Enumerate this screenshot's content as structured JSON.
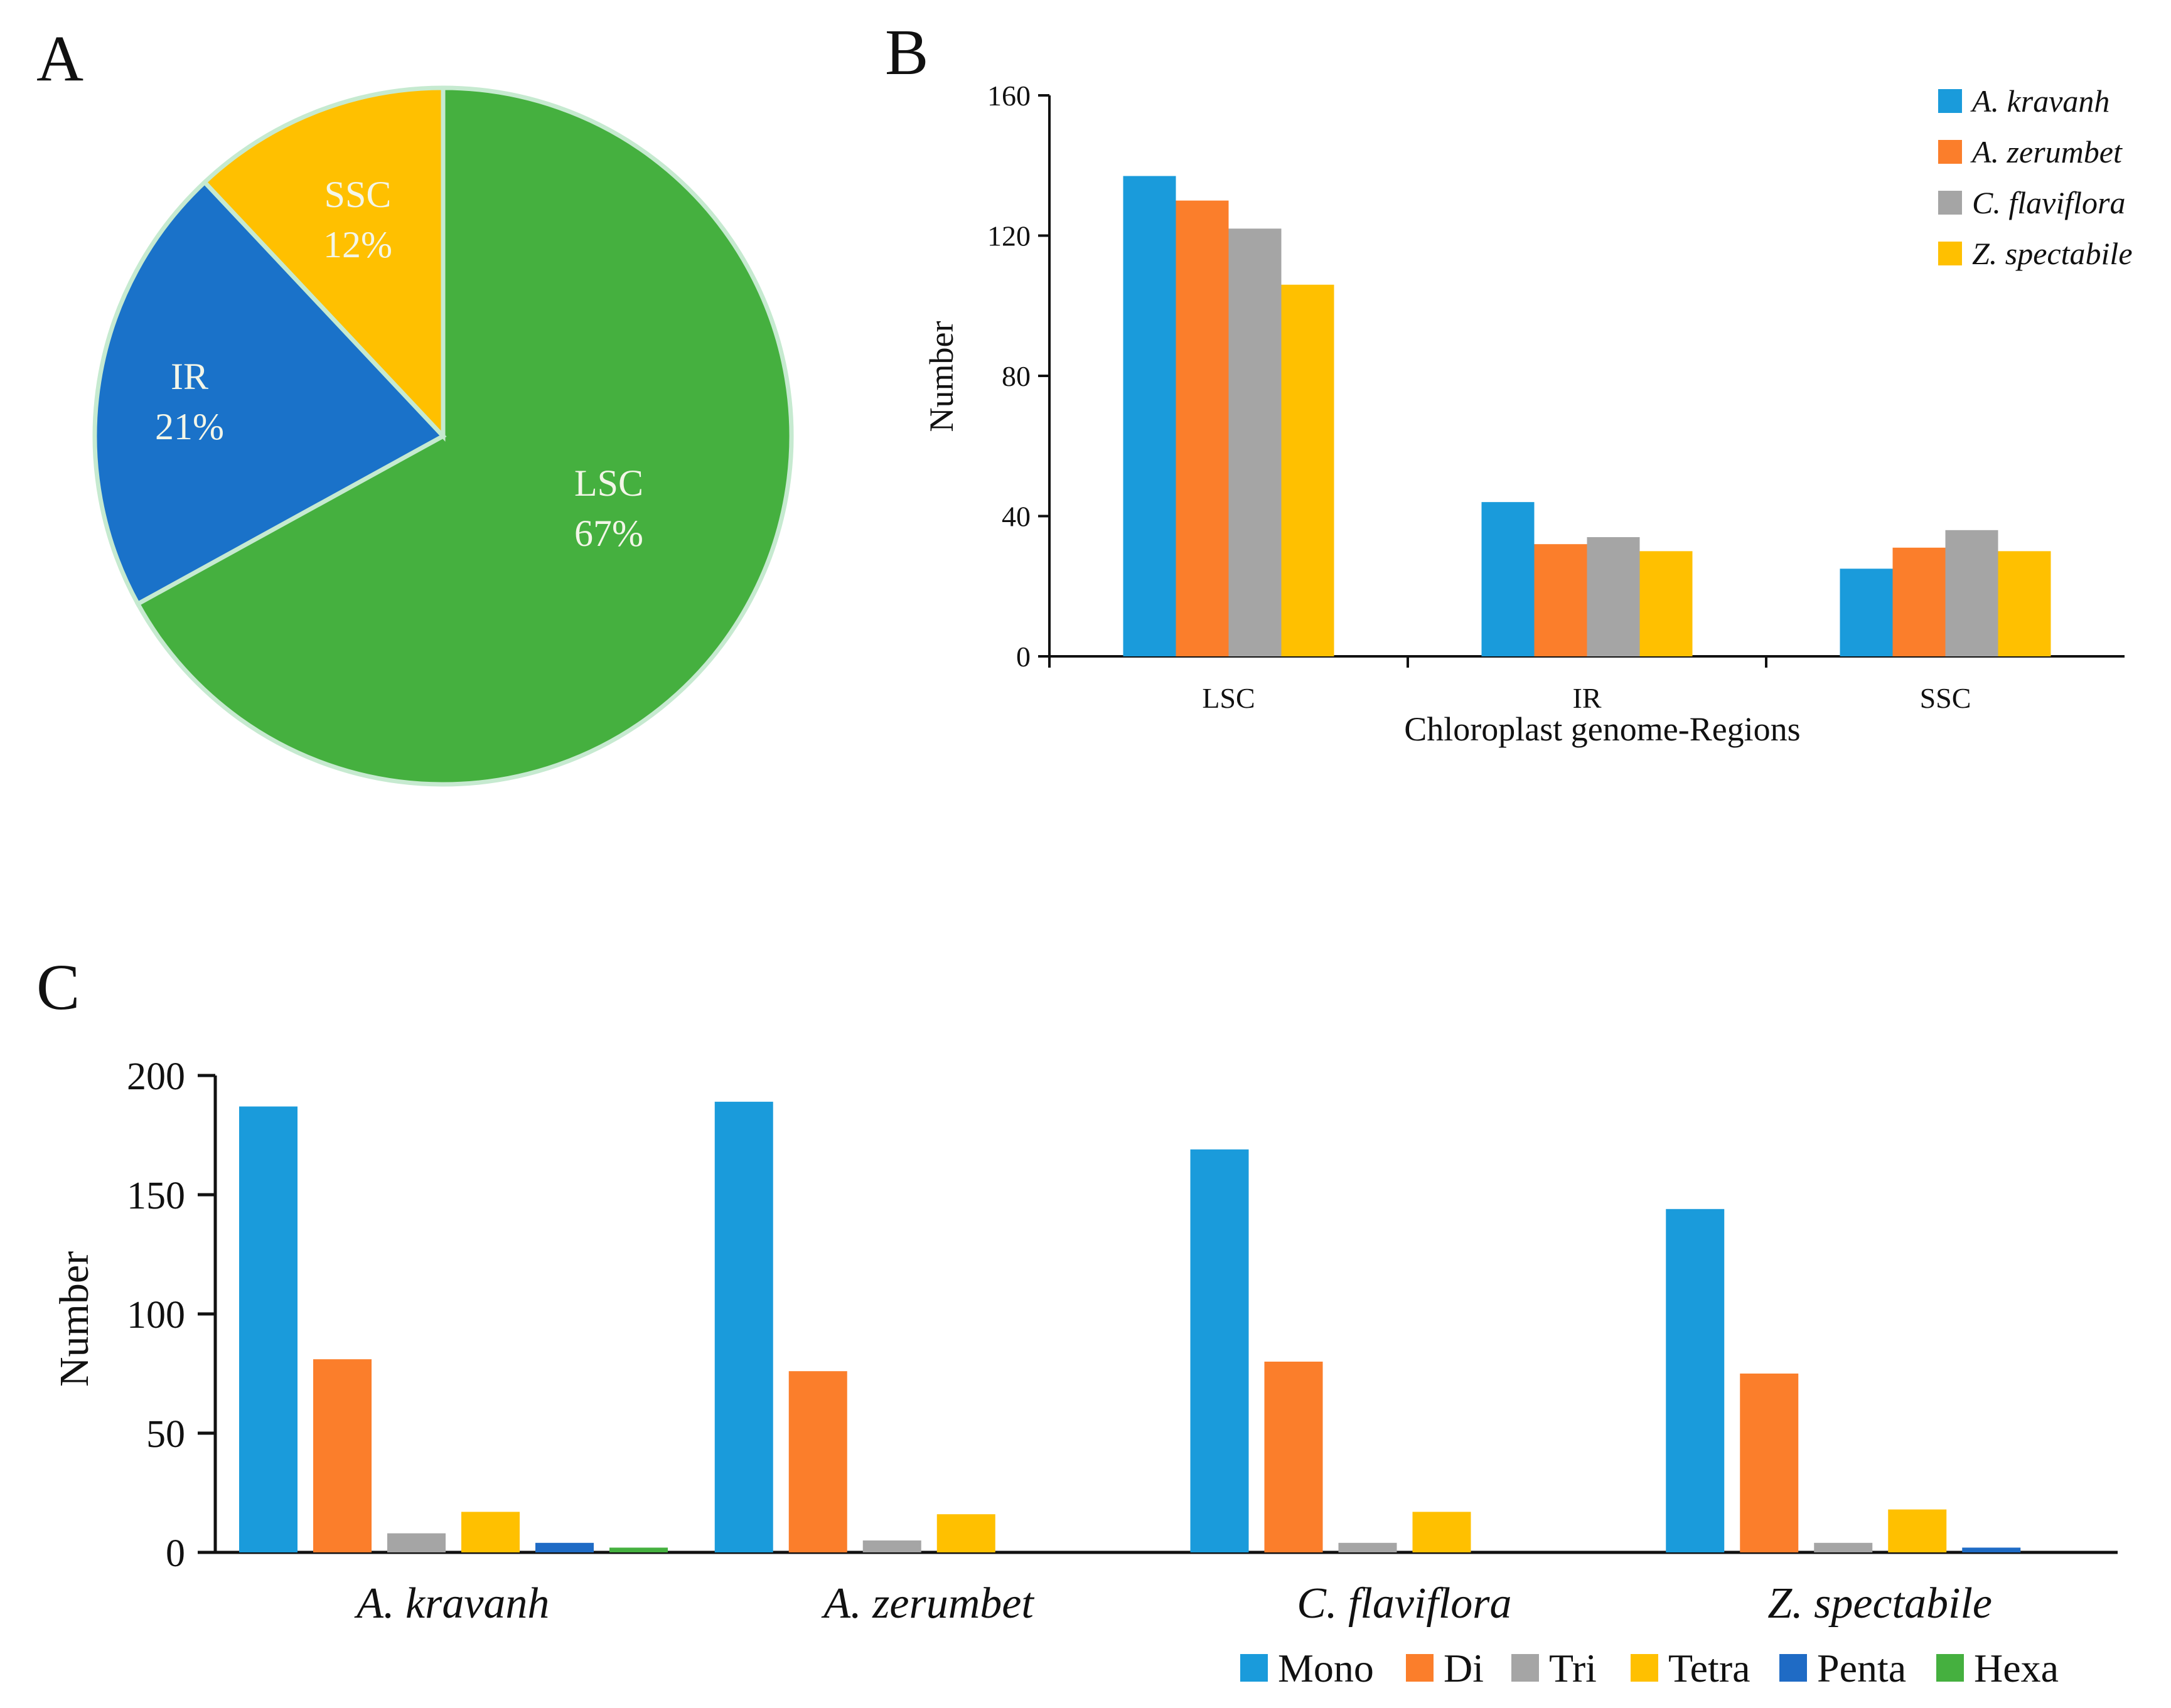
{
  "chart_data": [
    {
      "panel": "A",
      "type": "pie",
      "slices": [
        {
          "label": "LSC",
          "value": 67,
          "text": "67%",
          "color": "#45b03f"
        },
        {
          "label": "IR",
          "value": 21,
          "text": "21%",
          "color": "#1a72c9"
        },
        {
          "label": "SSC",
          "value": 12,
          "text": "12%",
          "color": "#ffc000"
        }
      ]
    },
    {
      "panel": "B",
      "type": "bar",
      "categories": [
        "LSC",
        "IR",
        "SSC"
      ],
      "series": [
        {
          "name": "A. kravanh",
          "color": "#1a9bdb",
          "values": [
            137,
            44,
            25
          ]
        },
        {
          "name": "A. zerumbet",
          "color": "#fb7e2b",
          "values": [
            130,
            32,
            31
          ]
        },
        {
          "name": "C. flaviflora",
          "color": "#a5a5a5",
          "values": [
            122,
            34,
            36
          ]
        },
        {
          "name": "Z. spectabile",
          "color": "#ffc000",
          "values": [
            106,
            30,
            30
          ]
        }
      ],
      "xlabel": "Chloroplast genome-Regions",
      "ylabel": "Number",
      "ylim": [
        0,
        160
      ],
      "yticks": [
        "0",
        "40",
        "80",
        "120",
        "160"
      ],
      "legend_position": "top-right"
    },
    {
      "panel": "C",
      "type": "bar",
      "categories": [
        "A. kravanh",
        "A. zerumbet",
        "C. flaviflora",
        "Z. spectabile"
      ],
      "series": [
        {
          "name": "Mono",
          "color": "#1a9bdb",
          "values": [
            187,
            189,
            169,
            144
          ]
        },
        {
          "name": "Di",
          "color": "#fb7e2b",
          "values": [
            81,
            76,
            80,
            75
          ]
        },
        {
          "name": "Tri",
          "color": "#a5a5a5",
          "values": [
            8,
            5,
            4,
            4
          ]
        },
        {
          "name": "Tetra",
          "color": "#ffc000",
          "values": [
            17,
            16,
            17,
            18
          ]
        },
        {
          "name": "Penta",
          "color": "#1f6bc5",
          "values": [
            4,
            0,
            0,
            2
          ]
        },
        {
          "name": "Hexa",
          "color": "#45b03f",
          "values": [
            2,
            0,
            0,
            0
          ]
        }
      ],
      "xlabel": "",
      "ylabel": "Number",
      "ylim": [
        0,
        200
      ],
      "yticks": [
        "0",
        "50",
        "100",
        "150",
        "200"
      ],
      "legend_position": "bottom-right"
    }
  ],
  "panels": {
    "a": "A",
    "b": "B",
    "c": "C"
  }
}
